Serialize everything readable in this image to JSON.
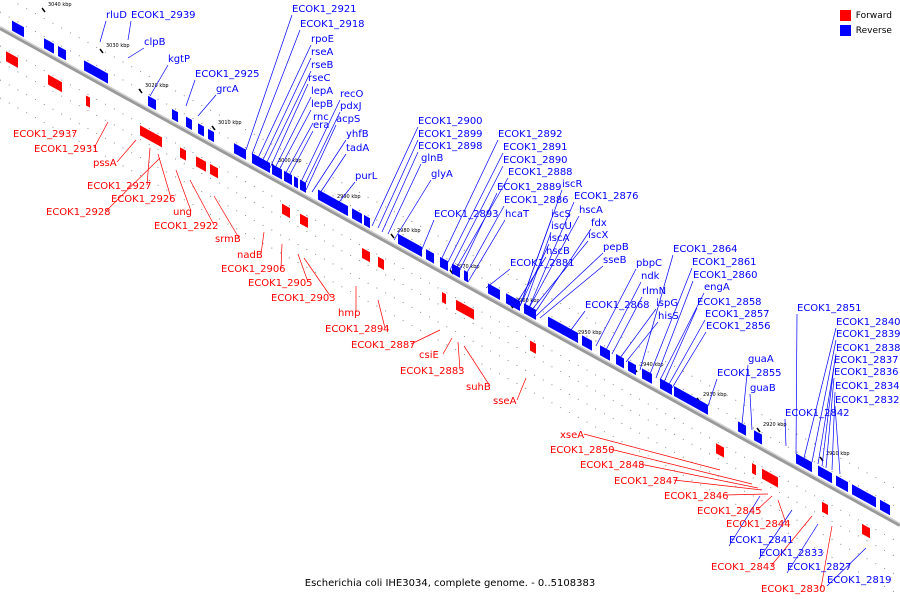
{
  "legend": {
    "forward_label": "Forward",
    "reverse_label": "Reverse",
    "forward_color": "#ff0000",
    "reverse_color": "#0000ff"
  },
  "caption": "Escherichia coli IHE3034, complete genome. - 0..5108383",
  "axis_color": "#7f7f7f",
  "ticks": [
    "3040 kbp",
    "3030 kbp",
    "3020 kbp",
    "3010 kbp",
    "3000 kbp",
    "2990 kbp",
    "2980 kbp",
    "2970 kbp",
    "2960 kbp",
    "2950 kbp",
    "2940 kbp",
    "2930 kbp",
    "2920 kbp",
    "2910 kbp"
  ],
  "reverse_labels": [
    "rluD",
    "ECOK1_2939",
    "clpB",
    "kgtP",
    "ECOK1_2925",
    "grcA",
    "ECOK1_2921",
    "ECOK1_2918",
    "rpoE",
    "rseA",
    "rseB",
    "rseC",
    "lepA",
    "lepB",
    "rnc",
    "era",
    "recO",
    "pdxJ",
    "acpS",
    "yhfB",
    "tadA",
    "purL",
    "ECOK1_2900",
    "ECOK1_2899",
    "ECOK1_2898",
    "glnB",
    "glyA",
    "ECOK1_2893",
    "ECOK1_2892",
    "ECOK1_2891",
    "ECOK1_2890",
    "ECOK1_2888",
    "ECOK1_2889",
    "iscR",
    "ECOK1_2886",
    "ECOK1_2876",
    "hcaT",
    "iscS",
    "hscA",
    "iscU",
    "fdx",
    "iscA",
    "iscX",
    "hscB",
    "pepB",
    "ECOK1_2881",
    "sseB",
    "ECOK1_2864",
    "pbpC",
    "ECOK1_2861",
    "ndk",
    "ECOK1_2860",
    "rlmN",
    "engA",
    "ispG",
    "ECOK1_2868",
    "ECOK1_2858",
    "hisS",
    "ECOK1_2857",
    "ECOK1_2856",
    "ECOK1_2855",
    "guaA",
    "guaB",
    "ECOK1_2851",
    "ECOK1_2840",
    "ECOK1_2839",
    "ECOK1_2838",
    "ECOK1_2837",
    "ECOK1_2836",
    "ECOK1_2834",
    "ECOK1_2832",
    "ECOK1_2842",
    "ECOK1_2841",
    "ECOK1_2833",
    "ECOK1_2827",
    "ECOK1_2819"
  ],
  "forward_labels": [
    "ECOK1_2937",
    "ECOK1_2931",
    "pssA",
    "ECOK1_2927",
    "ECOK1_2926",
    "ECOK1_2928",
    "ung",
    "ECOK1_2922",
    "srmB",
    "nadB",
    "ECOK1_2906",
    "ECOK1_2905",
    "ECOK1_2903",
    "hmp",
    "ECOK1_2894",
    "ECOK1_2887",
    "csiE",
    "ECOK1_2883",
    "suhB",
    "sseA",
    "xseA",
    "ECOK1_2850",
    "ECOK1_2848",
    "ECOK1_2847",
    "ECOK1_2846",
    "ECOK1_2845",
    "ECOK1_2844",
    "ECOK1_2843",
    "ECOK1_2830"
  ]
}
